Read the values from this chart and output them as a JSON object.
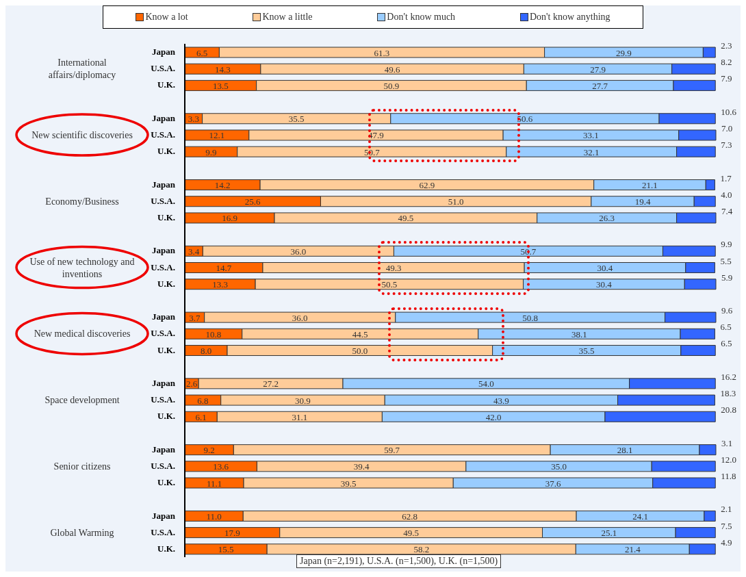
{
  "chart_data": {
    "type": "bar",
    "orientation": "horizontal",
    "stacked": true,
    "legend": "top",
    "categories": [
      "Japan",
      "U.S.A.",
      "U.K.",
      "Japan",
      "U.S.A.",
      "U.K.",
      "Japan",
      "U.S.A.",
      "U.K.",
      "Japan",
      "U.S.A.",
      "U.K.",
      "Japan",
      "U.S.A.",
      "U.K.",
      "Japan",
      "U.S.A.",
      "U.K.",
      "Japan",
      "U.S.A.",
      "U.K.",
      "Japan",
      "U.S.A.",
      "U.K."
    ],
    "series": [
      {
        "name": "Know a lot",
        "color": "#ff6600",
        "values": [
          6.5,
          14.3,
          13.5,
          3.3,
          12.1,
          9.9,
          14.2,
          25.6,
          16.9,
          3.4,
          14.7,
          13.3,
          3.7,
          10.8,
          8.0,
          2.6,
          6.8,
          6.1,
          9.2,
          13.6,
          11.1,
          11.0,
          17.9,
          15.5
        ],
        "value_labels": [
          "6.5",
          "14.3",
          "13.5",
          "3.3",
          "12.1",
          "9.9",
          "14.2",
          "25.6",
          "16.9",
          "3.4",
          "14.7",
          "13.3",
          "3.7",
          "10.8",
          "8.0",
          "2.6",
          "6.8",
          "6.1",
          "9.2",
          "13.6",
          "11.1",
          "11.0",
          "17.9",
          "15.5"
        ]
      },
      {
        "name": "Know a little",
        "color": "#ffcc99",
        "values": [
          61.3,
          49.6,
          50.9,
          35.5,
          47.9,
          50.7,
          62.9,
          51.0,
          49.5,
          36.0,
          49.3,
          50.5,
          36.0,
          44.5,
          50.0,
          27.2,
          30.9,
          31.1,
          59.7,
          39.4,
          39.5,
          62.8,
          49.5,
          58.2
        ],
        "value_labels": [
          "61.3",
          "49.6",
          "50.9",
          "35.5",
          "47.9",
          "50.7",
          "62.9",
          "51.0",
          "49.5",
          "36.0",
          "49.3",
          "50.5",
          "36.0",
          "44.5",
          "50.0",
          "27.2",
          "30.9",
          "31.1",
          "59.7",
          "39.4",
          "39.5",
          "62.8",
          "49.5",
          "58.2"
        ]
      },
      {
        "name": "Don't know much",
        "color": "#99ccff",
        "values": [
          29.9,
          27.9,
          27.7,
          50.6,
          33.1,
          32.1,
          21.1,
          19.4,
          26.3,
          50.7,
          30.4,
          30.4,
          50.8,
          38.1,
          35.5,
          54.0,
          43.9,
          42.0,
          28.1,
          35.0,
          37.6,
          24.1,
          25.1,
          21.4
        ],
        "value_labels": [
          "29.9",
          "27.9",
          "27.7",
          "50.6",
          "33.1",
          "32.1",
          "21.1",
          "19.4",
          "26.3",
          "50.7",
          "30.4",
          "30.4",
          "50.8",
          "38.1",
          "35.5",
          "54.0",
          "43.9",
          "42.0",
          "28.1",
          "35.0",
          "37.6",
          "24.1",
          "25.1",
          "21.4"
        ]
      },
      {
        "name": "Don't know anything",
        "color": "#3366ff",
        "values": [
          2.3,
          8.2,
          7.9,
          10.6,
          7.0,
          7.3,
          1.7,
          4.0,
          7.4,
          9.9,
          5.5,
          5.9,
          9.6,
          6.5,
          6.5,
          16.2,
          18.3,
          20.8,
          3.1,
          12.0,
          11.8,
          2.1,
          7.5,
          4.9
        ],
        "value_labels": [
          "2.3",
          "8.2",
          "7.9",
          "10.6",
          "7.0",
          "7.3",
          "1.7",
          "4.0",
          "7.4",
          "9.9",
          "5.5",
          "5.9",
          "9.6",
          "6.5",
          "6.5",
          "16.2",
          "18.3",
          "20.8",
          "3.1",
          "12.0",
          "11.8",
          "2.1",
          "7.5",
          "4.9"
        ]
      }
    ],
    "annotations": [
      "International affairs/diplomacy",
      "New scientific discoveries",
      "Economy/Business",
      "Use of new technology and inventions",
      "New medical discoveries",
      "Space development",
      "Senior citizens",
      "Global Warming",
      "Japan (n=2,191), U.S.A. (n=1,500), U.K. (n=1,500)"
    ]
  }
}
